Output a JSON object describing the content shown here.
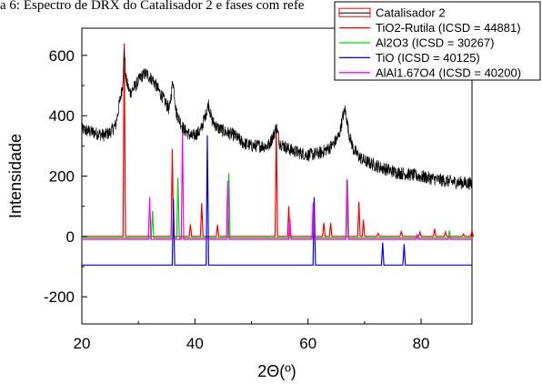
{
  "caption": "a 6: Espectro de DRX do Catalisador 2 e fases com refe",
  "chart_data": {
    "type": "line",
    "xlabel": "2Θ(º)",
    "ylabel": "Intensidade",
    "xlim": [
      20,
      89
    ],
    "ylim": [
      -290,
      690
    ],
    "xticks": [
      20,
      40,
      60,
      80
    ],
    "yticks": [
      -200,
      0,
      200,
      400,
      600
    ],
    "legend_position": "top-right",
    "grid": false,
    "experimental": {
      "name": "Catalisador 2",
      "color": "#000000",
      "noise_amplitude": 22,
      "x": [
        20,
        22,
        24,
        25,
        26,
        27.2,
        27.5,
        27.8,
        28.5,
        29.5,
        30.5,
        31.3,
        32.5,
        34,
        35.5,
        36.1,
        36.7,
        38,
        39.5,
        41,
        42,
        42.4,
        43,
        44,
        45.5,
        47,
        48.5,
        50,
        51.5,
        53,
        54,
        54.4,
        55,
        56.5,
        58,
        60,
        62,
        63.5,
        64.5,
        65.5,
        66.2,
        66.6,
        67.2,
        68,
        69,
        70,
        72,
        75,
        78,
        81,
        84,
        86,
        89
      ],
      "y": [
        355,
        345,
        335,
        345,
        370,
        500,
        625,
        520,
        475,
        500,
        530,
        540,
        520,
        470,
        420,
        520,
        410,
        355,
        330,
        350,
        410,
        440,
        385,
        360,
        345,
        335,
        310,
        300,
        300,
        300,
        340,
        365,
        310,
        290,
        280,
        270,
        275,
        290,
        305,
        335,
        400,
        420,
        345,
        290,
        265,
        250,
        235,
        215,
        205,
        195,
        185,
        180,
        175
      ]
    },
    "references": [
      {
        "name": "TiO2-Rutila (ICSD = 44881)",
        "color": "#ff0000",
        "baseline": 0,
        "peaks": [
          [
            27.5,
            640
          ],
          [
            36.0,
            290
          ],
          [
            39.2,
            40
          ],
          [
            41.2,
            110
          ],
          [
            44.0,
            38
          ],
          [
            54.4,
            360
          ],
          [
            56.6,
            100
          ],
          [
            62.8,
            45
          ],
          [
            64.0,
            45
          ],
          [
            69.0,
            115
          ],
          [
            69.8,
            55
          ],
          [
            72.4,
            10
          ],
          [
            76.5,
            18
          ],
          [
            79.8,
            15
          ],
          [
            82.4,
            25
          ],
          [
            84.3,
            15
          ],
          [
            87.5,
            8
          ],
          [
            89.0,
            20
          ]
        ]
      },
      {
        "name": "Al2O3 (ICSD = 30267)",
        "color": "#00dd00",
        "baseline": -5,
        "peaks": [
          [
            32.5,
            90
          ],
          [
            37.0,
            200
          ],
          [
            46.0,
            215
          ],
          [
            61.0,
            120
          ],
          [
            67.0,
            190
          ],
          [
            85.0,
            25
          ]
        ]
      },
      {
        "name": "TiO (ICSD = 40125)",
        "color": "#0000ff",
        "baseline": -95,
        "peaks": [
          [
            36.2,
            220
          ],
          [
            42.2,
            430
          ],
          [
            61.1,
            225
          ],
          [
            73.2,
            75
          ],
          [
            77.0,
            70
          ]
        ]
      },
      {
        "name": "AlAl1.67O4 (ICSD = 40200)",
        "color": "#ff00ff",
        "baseline": -10,
        "peaks": [
          [
            32.0,
            140
          ],
          [
            37.8,
            355
          ],
          [
            45.8,
            195
          ],
          [
            56.8,
            65
          ],
          [
            60.9,
            120
          ],
          [
            66.9,
            200
          ],
          [
            79.3,
            15
          ],
          [
            85.0,
            10
          ]
        ]
      }
    ]
  }
}
